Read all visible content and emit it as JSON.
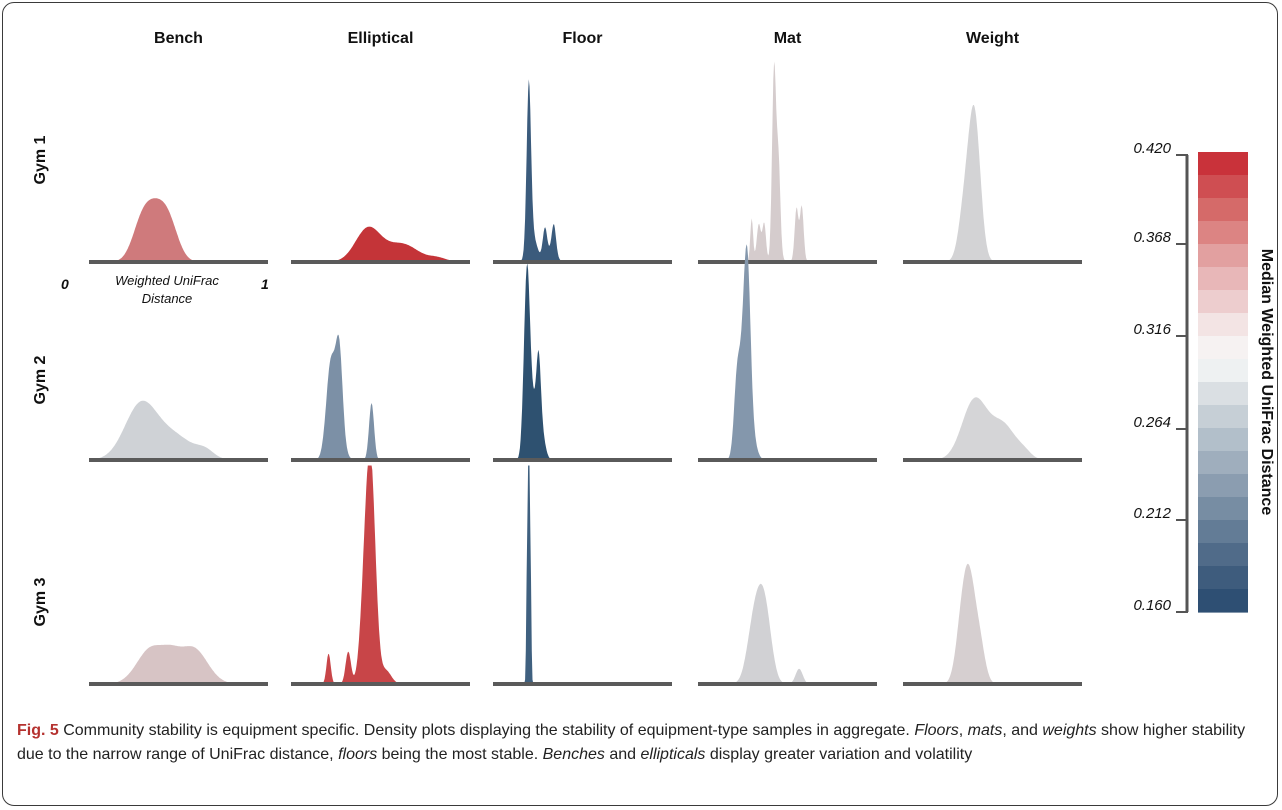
{
  "chart_data": {
    "type": "area",
    "subtype": "density-ridge-grid",
    "columns": [
      "Bench",
      "Elliptical",
      "Floor",
      "Mat",
      "Weight"
    ],
    "rows": [
      "Gym 1",
      "Gym 2",
      "Gym 3"
    ],
    "x_axis": {
      "label_line1": "Weighted UniFrac",
      "label_line2": "Distance",
      "min_label": "0",
      "max_label": "1",
      "range": [
        0,
        1
      ]
    },
    "colorbar": {
      "title": "Median Weighted UniFrac Distance",
      "ticks": [
        "0.420",
        "0.368",
        "0.316",
        "0.264",
        "0.212",
        "0.160"
      ],
      "range": [
        0.16,
        0.42
      ],
      "colors": [
        "#c9323a",
        "#cf4e52",
        "#d56a69",
        "#dc8483",
        "#e2a0a0",
        "#e8b7b8",
        "#edcdce",
        "#f3e4e4",
        "#f6f2f2",
        "#eef1f2",
        "#dadfe3",
        "#c6cfd6",
        "#b2bfca",
        "#9faebd",
        "#8b9db0",
        "#778da3",
        "#637c96",
        "#506b89",
        "#3e5c7d",
        "#2e4f73"
      ]
    },
    "panels": [
      {
        "row": "Gym 1",
        "column": "Bench",
        "color": "#cf7a7c",
        "peaks": [
          [
            0.3,
            0.055,
            0.22
          ],
          [
            0.44,
            0.055,
            0.22
          ],
          [
            0.37,
            0.05,
            0.14
          ]
        ]
      },
      {
        "row": "Gym 1",
        "column": "Elliptical",
        "color": "#c43438",
        "peaks": [
          [
            0.43,
            0.07,
            0.175
          ],
          [
            0.62,
            0.09,
            0.095
          ],
          [
            0.82,
            0.05,
            0.02
          ]
        ]
      },
      {
        "row": "Gym 1",
        "column": "Floor",
        "color": "#3b5b7c",
        "peaks": [
          [
            0.2,
            0.012,
            0.86
          ],
          [
            0.22,
            0.025,
            0.14
          ],
          [
            0.29,
            0.012,
            0.15
          ],
          [
            0.34,
            0.012,
            0.16
          ],
          [
            0.32,
            0.03,
            0.05
          ]
        ]
      },
      {
        "row": "Gym 1",
        "column": "Mat",
        "color": "#d5cccd",
        "peaks": [
          [
            0.3,
            0.008,
            0.23
          ],
          [
            0.34,
            0.012,
            0.2
          ],
          [
            0.37,
            0.01,
            0.2
          ],
          [
            0.425,
            0.011,
            0.96
          ],
          [
            0.44,
            0.02,
            0.1
          ],
          [
            0.45,
            0.01,
            0.44
          ],
          [
            0.55,
            0.01,
            0.24
          ],
          [
            0.58,
            0.01,
            0.25
          ],
          [
            0.565,
            0.02,
            0.06
          ]
        ]
      },
      {
        "row": "Gym 1",
        "column": "Weight",
        "color": "#d3d3d5",
        "peaks": [
          [
            0.34,
            0.03,
            0.16
          ],
          [
            0.4,
            0.033,
            0.71
          ],
          [
            0.36,
            0.04,
            0.14
          ]
        ]
      },
      {
        "row": "Gym 2",
        "column": "Bench",
        "color": "#cfd2d6",
        "peaks": [
          [
            0.29,
            0.09,
            0.29
          ],
          [
            0.48,
            0.1,
            0.12
          ],
          [
            0.65,
            0.05,
            0.04
          ]
        ]
      },
      {
        "row": "Gym 2",
        "column": "Elliptical",
        "color": "#7c90a6",
        "peaks": [
          [
            0.22,
            0.025,
            0.44
          ],
          [
            0.27,
            0.018,
            0.39
          ],
          [
            0.26,
            0.03,
            0.2
          ],
          [
            0.45,
            0.014,
            0.3
          ]
        ]
      },
      {
        "row": "Gym 2",
        "column": "Floor",
        "color": "#2e5170",
        "peaks": [
          [
            0.19,
            0.017,
            1.0
          ],
          [
            0.23,
            0.02,
            0.25
          ],
          [
            0.255,
            0.012,
            0.35
          ],
          [
            0.27,
            0.02,
            0.15
          ]
        ]
      },
      {
        "row": "Gym 2",
        "column": "Mat",
        "color": "#8497ac",
        "peaks": [
          [
            0.22,
            0.018,
            0.44
          ],
          [
            0.26,
            0.018,
            0.52
          ],
          [
            0.28,
            0.016,
            0.5
          ],
          [
            0.28,
            0.03,
            0.24
          ],
          [
            0.27,
            0.03,
            0.04
          ]
        ]
      },
      {
        "row": "Gym 2",
        "column": "Weight",
        "color": "#d5d5d7",
        "peaks": [
          [
            0.4,
            0.07,
            0.315
          ],
          [
            0.56,
            0.07,
            0.18
          ],
          [
            0.68,
            0.04,
            0.03
          ]
        ]
      },
      {
        "row": "Gym 3",
        "column": "Bench",
        "color": "#d7c4c5",
        "peaks": [
          [
            0.35,
            0.08,
            0.19
          ],
          [
            0.58,
            0.08,
            0.19
          ],
          [
            0.46,
            0.05,
            0.07
          ]
        ]
      },
      {
        "row": "Gym 3",
        "column": "Elliptical",
        "color": "#c84548",
        "peaks": [
          [
            0.21,
            0.012,
            0.16
          ],
          [
            0.32,
            0.015,
            0.17
          ],
          [
            0.41,
            0.025,
            0.25
          ],
          [
            0.44,
            0.03,
            0.35
          ],
          [
            0.45,
            0.025,
            0.6
          ],
          [
            0.43,
            0.03,
            0.23
          ],
          [
            0.53,
            0.03,
            0.07
          ]
        ]
      },
      {
        "row": "Gym 3",
        "column": "Floor",
        "color": "#3f607f",
        "peaks": [
          [
            0.19,
            0.004,
            0.59
          ],
          [
            0.2,
            0.004,
            1.3
          ],
          [
            0.21,
            0.004,
            0.58
          ],
          [
            0.2,
            0.008,
            0.25
          ]
        ]
      },
      {
        "row": "Gym 3",
        "column": "Mat",
        "color": "#d1d1d4",
        "peaks": [
          [
            0.32,
            0.04,
            0.34
          ],
          [
            0.38,
            0.035,
            0.3
          ],
          [
            0.35,
            0.03,
            0.06
          ],
          [
            0.565,
            0.02,
            0.08
          ],
          [
            0.29,
            0.03,
            0.02
          ]
        ]
      },
      {
        "row": "Gym 3",
        "column": "Weight",
        "color": "#d6cfd0",
        "peaks": [
          [
            0.32,
            0.03,
            0.15
          ],
          [
            0.37,
            0.035,
            0.44
          ],
          [
            0.35,
            0.04,
            0.14
          ],
          [
            0.43,
            0.03,
            0.18
          ]
        ]
      }
    ]
  },
  "caption": {
    "label": "Fig. 5",
    "parts": [
      {
        "t": " Community stability is equipment specific. Density plots displaying the stability of equipment-type samples in aggregate. ",
        "i": false
      },
      {
        "t": "Floors",
        "i": true
      },
      {
        "t": ", ",
        "i": false
      },
      {
        "t": "mats",
        "i": true
      },
      {
        "t": ", and ",
        "i": false
      },
      {
        "t": "weights",
        "i": true
      },
      {
        "t": " show higher stability due to the narrow range of UniFrac distance, ",
        "i": false
      },
      {
        "t": "floors",
        "i": true
      },
      {
        "t": " being the most stable. ",
        "i": false
      },
      {
        "t": "Benches",
        "i": true
      },
      {
        "t": " and ",
        "i": false
      },
      {
        "t": "ellipticals",
        "i": true
      },
      {
        "t": " display greater variation and volatility",
        "i": false
      }
    ]
  }
}
